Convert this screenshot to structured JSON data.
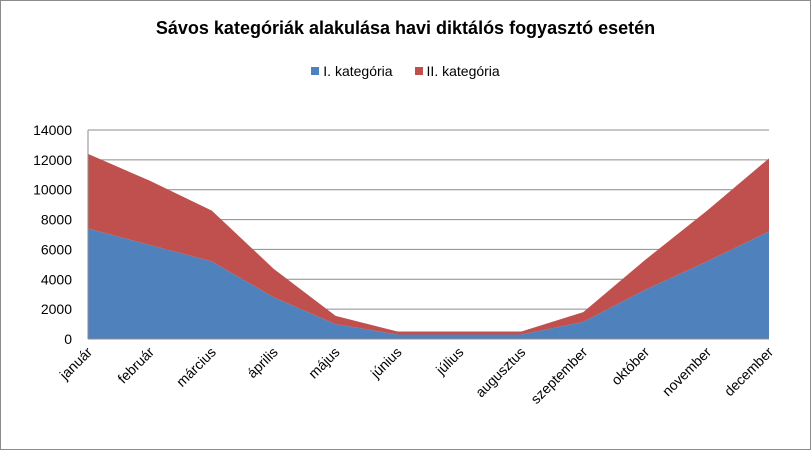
{
  "chart_data": {
    "type": "area",
    "stacked": true,
    "title": "Sávos kategóriák alakulása havi diktálós fogyasztó esetén",
    "xlabel": "",
    "ylabel": "",
    "categories": [
      "január",
      "február",
      "március",
      "április",
      "május",
      "június",
      "július",
      "augusztus",
      "szeptember",
      "október",
      "november",
      "december"
    ],
    "series": [
      {
        "name": "I. kategória",
        "color": "#4f81bd",
        "values": [
          7400,
          6300,
          5200,
          2800,
          1000,
          300,
          300,
          300,
          1150,
          3300,
          5200,
          7200
        ]
      },
      {
        "name": "II. kategória",
        "color": "#c0504d",
        "values": [
          5000,
          4300,
          3400,
          1900,
          550,
          200,
          200,
          200,
          650,
          2000,
          3400,
          4900
        ]
      }
    ],
    "ylim": [
      0,
      14000
    ],
    "yticks": [
      0,
      2000,
      4000,
      6000,
      8000,
      10000,
      12000,
      14000
    ],
    "grid": true,
    "legend_position": "top"
  }
}
